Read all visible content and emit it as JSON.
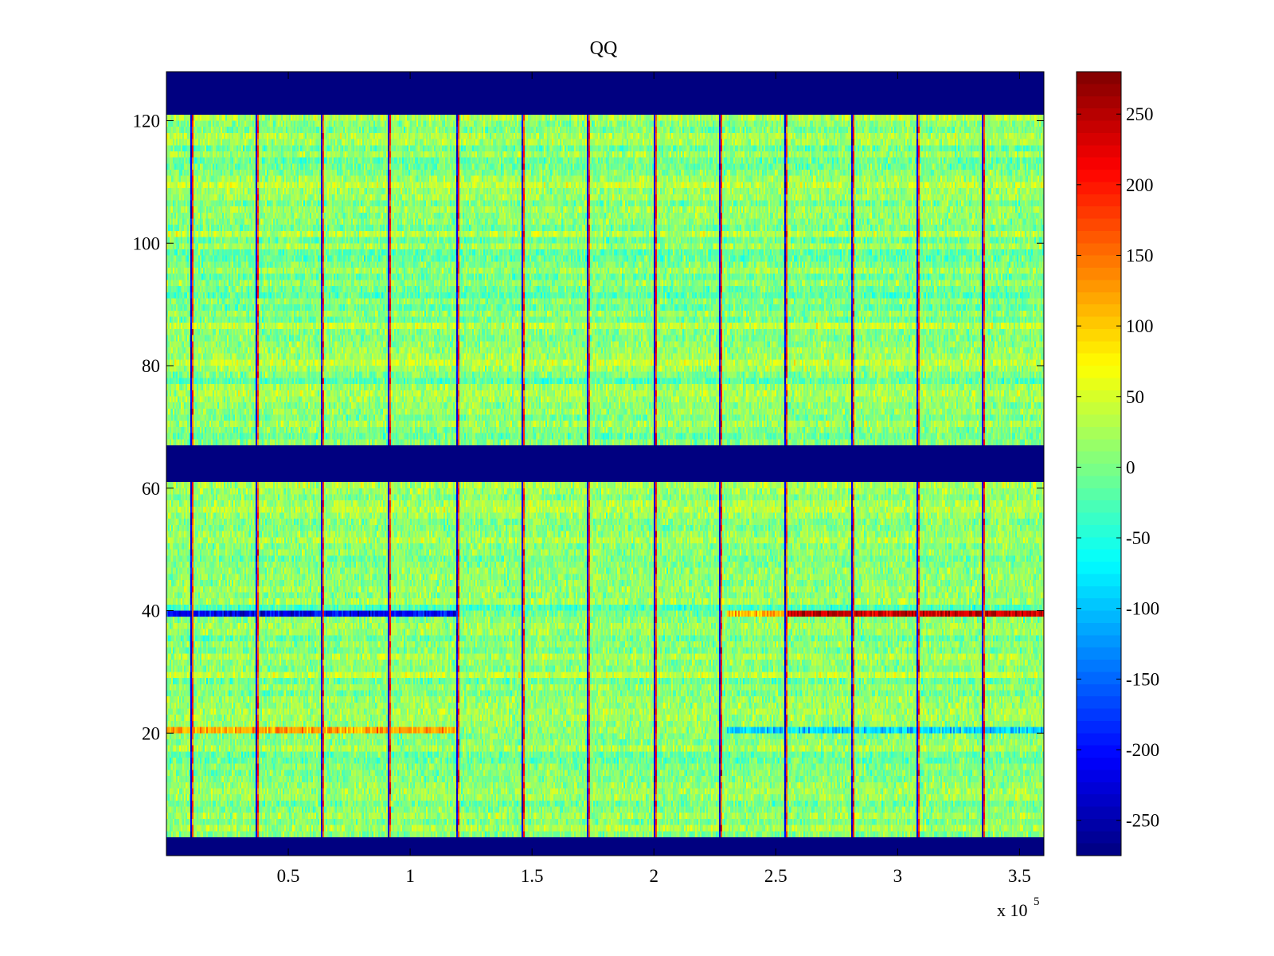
{
  "chart_data": {
    "type": "heatmap",
    "title": "QQ",
    "xlabel": "",
    "ylabel": "",
    "x_scale_label": "x 10",
    "x_scale_exponent": "5",
    "xlim": [
      0,
      3.6
    ],
    "ylim": [
      0,
      128
    ],
    "x_ticks": [
      0.5,
      1,
      1.5,
      2,
      2.5,
      3,
      3.5
    ],
    "x_tick_labels": [
      "0.5",
      "1",
      "1.5",
      "2",
      "2.5",
      "3",
      "3.5"
    ],
    "y_ticks": [
      20,
      40,
      60,
      80,
      100,
      120
    ],
    "y_tick_labels": [
      "20",
      "40",
      "60",
      "80",
      "100",
      "120"
    ],
    "colormap": "jet",
    "clim": [
      -275,
      280
    ],
    "colorbar_ticks": [
      250,
      200,
      150,
      100,
      50,
      0,
      -50,
      -100,
      -150,
      -200,
      -250
    ],
    "colorbar_tick_labels": [
      "250",
      "200",
      "150",
      "100",
      "50",
      "0",
      "-50",
      "-100",
      "-150",
      "-200",
      "-250"
    ],
    "masked_row_ranges": [
      [
        0,
        3
      ],
      [
        61,
        67
      ],
      [
        121,
        128
      ]
    ],
    "masked_value": -275,
    "background_value": 10,
    "column_boundaries_x1e5": [
      0.1,
      0.37,
      0.64,
      0.91,
      1.19,
      1.46,
      1.73,
      2.0,
      2.27,
      2.54,
      2.81,
      3.08,
      3.35
    ],
    "highlighted_bands": [
      {
        "row": 39,
        "x_range": [
          0.0,
          1.2
        ],
        "value": -210
      },
      {
        "row": 39,
        "x_range": [
          2.3,
          2.55
        ],
        "value": 110
      },
      {
        "row": 39,
        "x_range": [
          2.55,
          3.6
        ],
        "value": 240
      },
      {
        "row": 20,
        "x_range": [
          0.0,
          1.2
        ],
        "value": 120
      },
      {
        "row": 20,
        "x_range": [
          2.3,
          3.6
        ],
        "value": -90
      }
    ]
  },
  "colors": {
    "background": "#ffffff",
    "axis": "#000000",
    "masked": "#00008f"
  }
}
